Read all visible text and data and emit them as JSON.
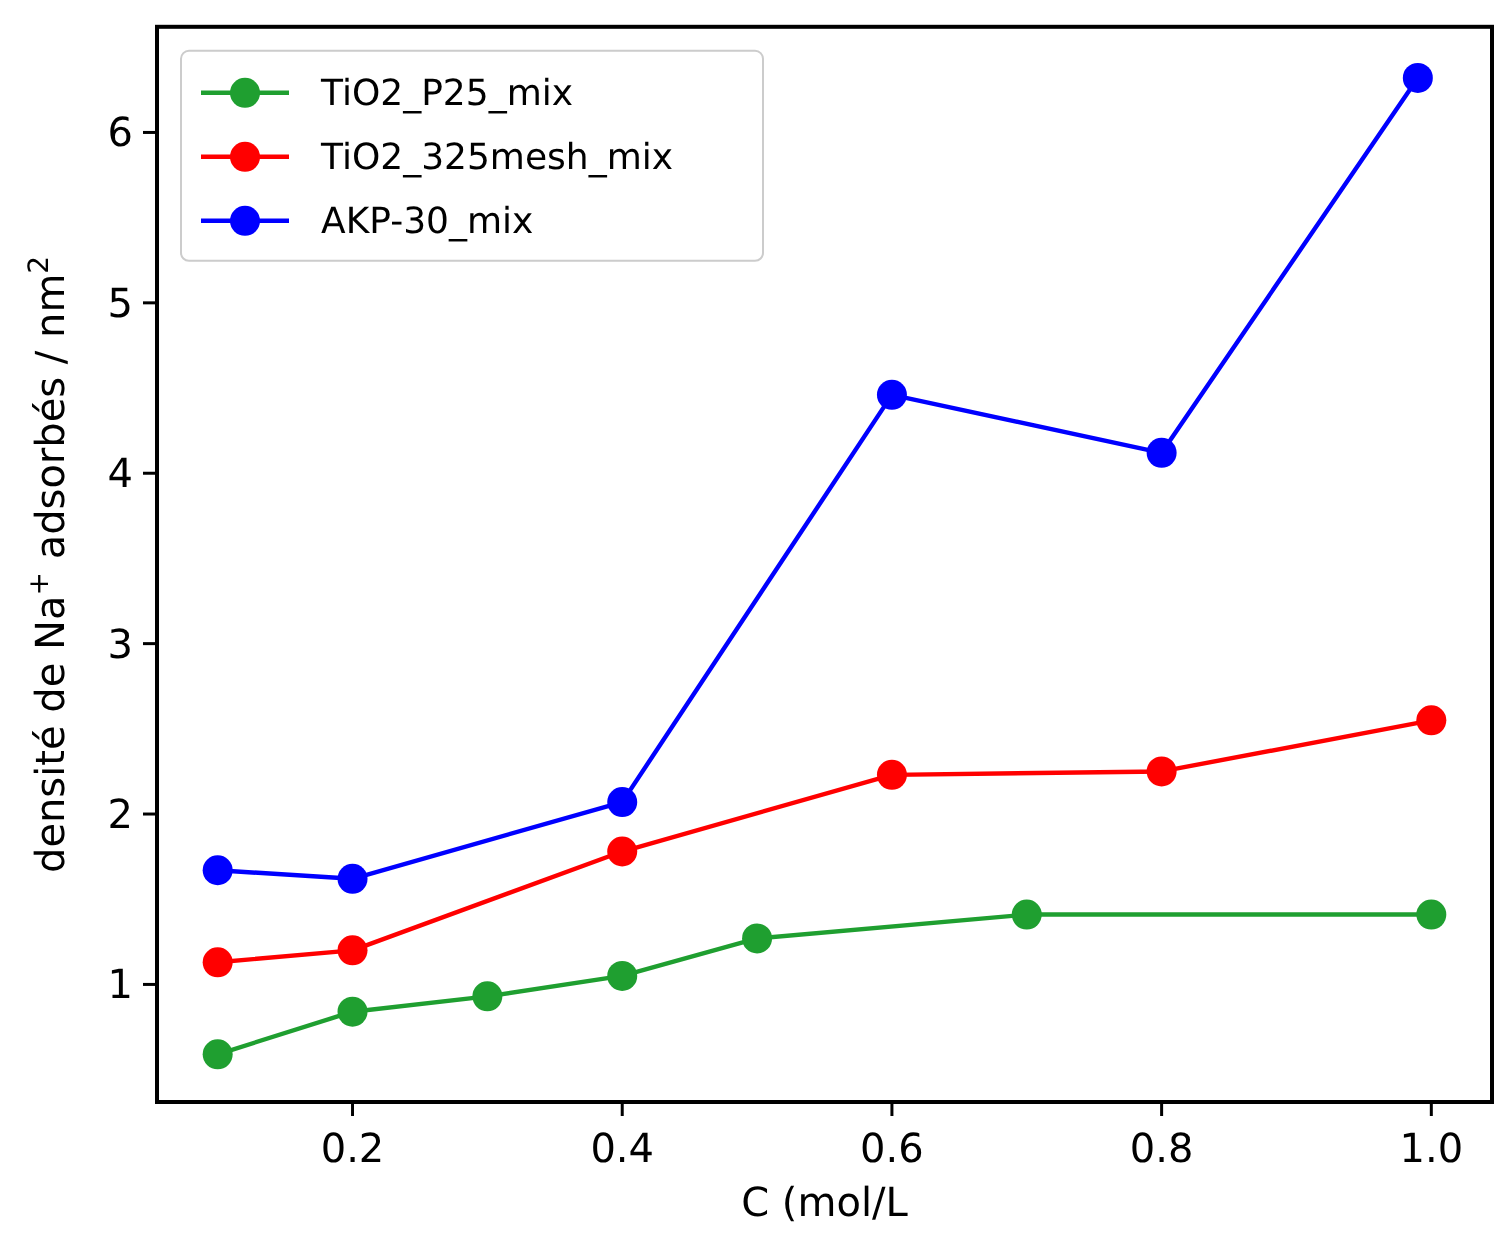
{
  "chart_data": {
    "type": "line",
    "xlabel": "C (mol/L",
    "ylabel": "densité de Na$^{+}$ adsorbés / nm$^{2}$",
    "xlim": [
      0.055,
      1.045
    ],
    "xticks": [
      {
        "value": 0.2,
        "label": "0.2"
      },
      {
        "value": 0.4,
        "label": "0.4"
      },
      {
        "value": 0.6,
        "label": "0.6"
      },
      {
        "value": 0.8,
        "label": "0.8"
      },
      {
        "value": 1.0,
        "label": "1.0"
      }
    ],
    "ylim": [
      0.31,
      6.62
    ],
    "yticks": [
      1,
      2,
      3,
      4,
      5,
      6
    ],
    "grid": false,
    "legend": "top left",
    "marker": "circle",
    "line_style": "solid",
    "series": [
      {
        "name": "TiO2_P25_mix",
        "color": "#1f9f30",
        "x": [
          0.1,
          0.2,
          0.3,
          0.4,
          0.5,
          0.7,
          1.0
        ],
        "values": [
          0.59,
          0.84,
          0.93,
          1.05,
          1.27,
          1.41,
          1.41
        ]
      },
      {
        "name": "TiO2_325mesh_mix",
        "color": "#ff0000",
        "x": [
          0.1,
          0.2,
          0.4,
          0.6,
          0.8,
          1.0
        ],
        "values": [
          1.13,
          1.2,
          1.78,
          2.23,
          2.25,
          2.55
        ]
      },
      {
        "name": "AKP-30_mix",
        "color": "#0000ff",
        "x": [
          0.1,
          0.2,
          0.4,
          0.6,
          0.8,
          0.99
        ],
        "values": [
          1.67,
          1.62,
          2.07,
          4.46,
          4.12,
          6.32
        ]
      }
    ]
  }
}
